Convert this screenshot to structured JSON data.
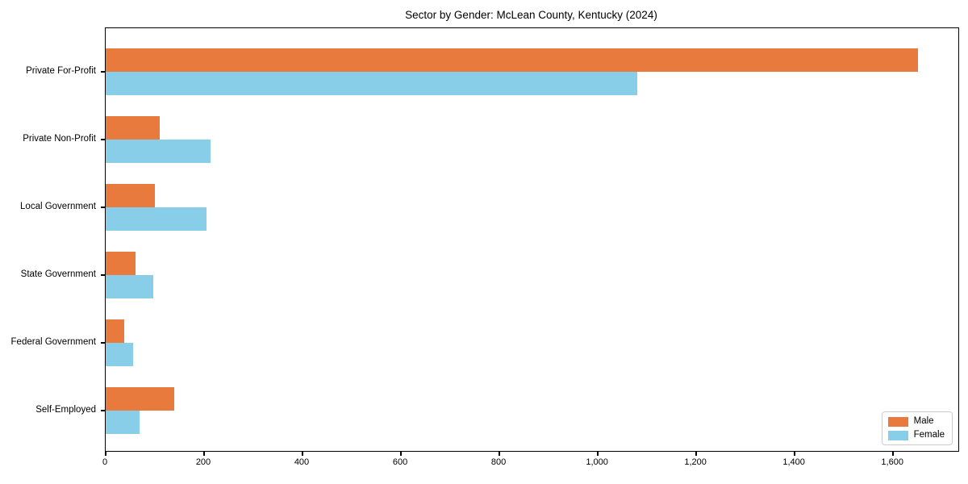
{
  "chart_data": {
    "type": "bar",
    "orientation": "horizontal",
    "title": "Sector by Gender: McLean County, Kentucky (2024)",
    "categories": [
      "Private For-Profit",
      "Private Non-Profit",
      "Local Government",
      "State Government",
      "Federal Government",
      "Self-Employed"
    ],
    "series": [
      {
        "name": "Male",
        "color": "#E87A3D",
        "values": [
          1650,
          110,
          100,
          60,
          38,
          140
        ]
      },
      {
        "name": "Female",
        "color": "#89CEE8",
        "values": [
          1080,
          213,
          205,
          97,
          55,
          69
        ]
      }
    ],
    "xlabel": "",
    "ylabel": "",
    "xlim": [
      0,
      1732.5
    ],
    "xticks": [
      0,
      200,
      400,
      600,
      800,
      1000,
      1200,
      1400,
      1600
    ],
    "xtick_labels": [
      "0",
      "200",
      "400",
      "600",
      "800",
      "1,000",
      "1,200",
      "1,400",
      "1,600"
    ],
    "grid": false,
    "legend": {
      "position": "lower-right"
    },
    "colors": {
      "axis": "#000000",
      "background": "#ffffff",
      "legend_border": "#cccccc"
    }
  }
}
